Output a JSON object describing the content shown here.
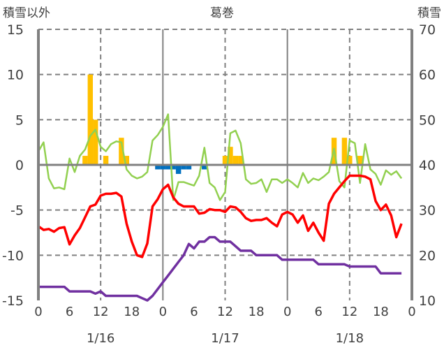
{
  "chart_data": {
    "type": "bar+line",
    "title": "葛巻",
    "left_axis_label": "積雪以外",
    "right_axis_label": "積雪",
    "left_ylim": [
      -15,
      15
    ],
    "left_ticks": [
      15,
      10,
      5,
      0,
      -5,
      -10,
      -15
    ],
    "right_ylim": [
      10,
      70
    ],
    "right_ticks": [
      70,
      60,
      50,
      40,
      30,
      20,
      10
    ],
    "x_tick_labels": [
      "0",
      "6",
      "12",
      "18",
      "0",
      "6",
      "12",
      "18",
      "0",
      "6",
      "12",
      "18",
      "0"
    ],
    "date_labels": [
      "1/16",
      "1/17",
      "1/18"
    ],
    "hours": 71,
    "series": [
      {
        "name": "precipitation",
        "kind": "bar",
        "axis": "left",
        "color": "#FFC000",
        "points": [
          [
            9,
            1
          ],
          [
            10,
            10
          ],
          [
            11,
            5
          ],
          [
            13,
            1
          ],
          [
            16,
            3
          ],
          [
            17,
            1
          ],
          [
            36,
            1
          ],
          [
            37,
            2
          ],
          [
            38,
            1
          ],
          [
            39,
            1
          ],
          [
            57,
            3
          ],
          [
            59,
            3
          ],
          [
            60,
            1
          ],
          [
            62,
            1
          ]
        ]
      },
      {
        "name": "snow-depth-change",
        "kind": "bar",
        "axis": "left",
        "color": "#0070C0",
        "points": [
          [
            23,
            -0.5
          ],
          [
            24,
            -0.5
          ],
          [
            25,
            -0.5
          ],
          [
            26,
            -0.5
          ],
          [
            27,
            -1
          ],
          [
            28,
            -0.5
          ],
          [
            29,
            -0.5
          ],
          [
            32,
            -0.5
          ]
        ]
      },
      {
        "name": "green-series",
        "kind": "line",
        "axis": "left",
        "color": "#92D050",
        "values": [
          1.5,
          2.5,
          -1.5,
          -2.6,
          -2.5,
          -2.7,
          0.7,
          -0.8,
          1.0,
          1.7,
          3.2,
          3.9,
          2.0,
          1.5,
          2.3,
          2.6,
          2.5,
          -0.5,
          -1.2,
          -1.5,
          -1.3,
          -0.8,
          2.7,
          3.3,
          4.2,
          5.6,
          -3.9,
          -1.9,
          -1.9,
          -2.1,
          -2.3,
          -1.2,
          1.9,
          -2.0,
          -2.5,
          -3.9,
          -3.0,
          3.5,
          3.8,
          2.4,
          -1.6,
          -2.1,
          -2.0,
          -1.6,
          -3.0,
          -1.6,
          -1.6,
          -2.0,
          -1.6,
          -2.0,
          -2.5,
          -0.9,
          -2.0,
          -1.5,
          -1.7,
          -1.3,
          -0.8,
          1.8,
          -1.8,
          -2.5,
          2.7,
          2.4,
          -2.0,
          2.3,
          -0.5,
          -1.0,
          -2.2,
          -0.6,
          -1.1,
          -0.7,
          -1.5
        ]
      },
      {
        "name": "temperature",
        "kind": "line",
        "axis": "left",
        "color": "#FF0000",
        "values": [
          -6.8,
          -7.2,
          -7.1,
          -7.4,
          -7.0,
          -6.9,
          -8.8,
          -7.8,
          -7.0,
          -5.8,
          -4.6,
          -4.4,
          -3.4,
          -3.2,
          -3.2,
          -3.1,
          -3.5,
          -6.5,
          -8.5,
          -10.0,
          -10.2,
          -8.7,
          -4.6,
          -3.8,
          -2.7,
          -2.2,
          -3.6,
          -4.3,
          -4.6,
          -4.6,
          -4.6,
          -5.4,
          -5.3,
          -4.9,
          -5.0,
          -5.0,
          -5.2,
          -4.6,
          -4.7,
          -5.2,
          -5.9,
          -6.2,
          -6.1,
          -6.1,
          -5.9,
          -6.4,
          -6.8,
          -5.5,
          -5.2,
          -5.5,
          -6.4,
          -5.6,
          -7.3,
          -6.4,
          -7.5,
          -8.4,
          -4.3,
          -3.2,
          -2.5,
          -1.8,
          -1.2,
          -1.2,
          -1.2,
          -1.3,
          -1.6,
          -4.0,
          -5.0,
          -4.4,
          -5.6,
          -8.0,
          -6.5
        ]
      },
      {
        "name": "snow-depth",
        "kind": "line",
        "axis": "right",
        "color": "#7030A0",
        "values": [
          13,
          13,
          13,
          13,
          13,
          13,
          12,
          12,
          12,
          12,
          12,
          11.5,
          12,
          11,
          11,
          11,
          11,
          11,
          11,
          11,
          10.5,
          10,
          11,
          12.5,
          14,
          15.5,
          17,
          18.5,
          20,
          22.5,
          21.5,
          23,
          23,
          24,
          24,
          23,
          23,
          23,
          22,
          21,
          21,
          21,
          20,
          20,
          20,
          20,
          20,
          19,
          19,
          19,
          19,
          19,
          19,
          19,
          18,
          18,
          18,
          18,
          18,
          18,
          17.5,
          17.5,
          17.5,
          17.5,
          17.5,
          17.5,
          16,
          16,
          16,
          16,
          16
        ]
      }
    ]
  }
}
